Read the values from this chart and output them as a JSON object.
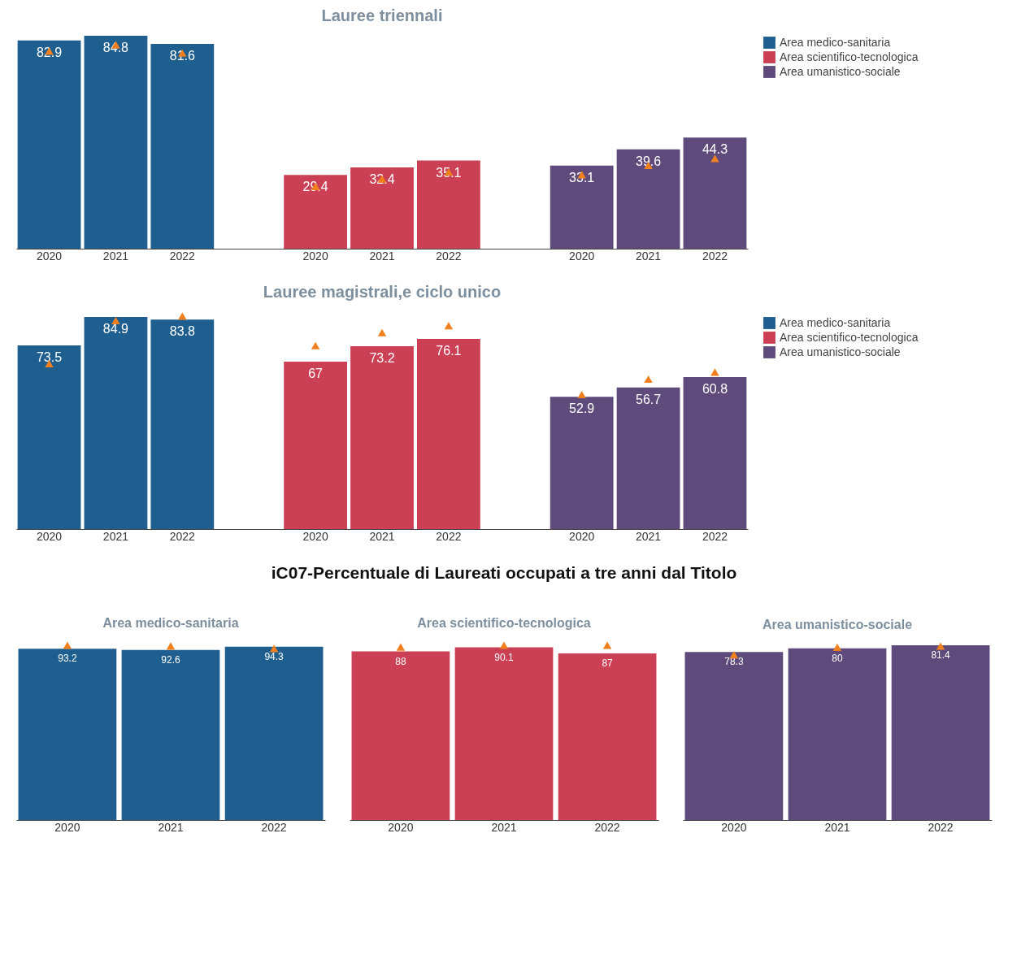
{
  "chart_data": [
    {
      "type": "bar",
      "title": "Lauree triennali",
      "categories": [
        "2020",
        "2021",
        "2022",
        "2020",
        "2021",
        "2022",
        "2020",
        "2021",
        "2022"
      ],
      "tick_labels": "x",
      "grid": false,
      "legend": "top right",
      "series": [
        {
          "name": "Area medico-sanitaria",
          "color": "#1f5f8f",
          "values": [
            82.9,
            84.8,
            81.6,
            null,
            null,
            null,
            null,
            null,
            null
          ],
          "value_labels": [
            "82.9",
            "84.8",
            "81.6",
            null,
            null,
            null,
            null,
            null,
            null
          ]
        },
        {
          "name": "Area scientifico-tecnologica",
          "color": "#cc4055",
          "values": [
            null,
            null,
            null,
            29.4,
            32.4,
            35.1,
            null,
            null,
            null
          ],
          "value_labels": [
            null,
            null,
            null,
            "29.4",
            "32.4",
            "35.1",
            null,
            null,
            null
          ]
        },
        {
          "name": "Area umanistico-sociale",
          "color": "#5e4b7c",
          "values": [
            null,
            null,
            null,
            null,
            null,
            null,
            33.1,
            39.6,
            44.3
          ],
          "value_labels": [
            null,
            null,
            null,
            null,
            null,
            null,
            "33.1",
            "39.6",
            "44.3"
          ]
        },
        {
          "type": "scatter",
          "marker": "triangle",
          "color": "#f0801e",
          "values": [
            78.7,
            81.2,
            77.9,
            24.8,
            27.8,
            30.5,
            29.5,
            33.2,
            35.9
          ]
        }
      ]
    },
    {
      "type": "bar",
      "title": "Lauree magistrali,e ciclo unico",
      "categories": [
        "2020",
        "2021",
        "2022",
        "2020",
        "2021",
        "2022",
        "2020",
        "2021",
        "2022"
      ],
      "tick_labels": "x",
      "grid": false,
      "legend": "top right",
      "series": [
        {
          "name": "Area medico-sanitaria",
          "color": "#1f5f8f",
          "values": [
            73.5,
            84.9,
            83.8,
            null,
            null,
            null,
            null,
            null,
            null
          ],
          "value_labels": [
            "73.5",
            "84.9",
            "83.8",
            null,
            null,
            null,
            null,
            null,
            null
          ]
        },
        {
          "name": "Area scientifico-tecnologica",
          "color": "#cc4055",
          "values": [
            null,
            null,
            null,
            67,
            73.2,
            76.1,
            null,
            null,
            null
          ],
          "value_labels": [
            null,
            null,
            null,
            "67",
            "73.2",
            "76.1",
            null,
            null,
            null
          ]
        },
        {
          "name": "Area umanistico-sociale",
          "color": "#5e4b7c",
          "values": [
            null,
            null,
            null,
            null,
            null,
            null,
            52.9,
            56.7,
            60.8
          ],
          "value_labels": [
            null,
            null,
            null,
            null,
            null,
            null,
            "52.9",
            "56.7",
            "60.8"
          ]
        },
        {
          "type": "scatter",
          "marker": "triangle",
          "color": "#f0801e",
          "values": [
            66.2,
            83.4,
            85.2,
            73.4,
            78.6,
            81.4,
            53.8,
            60.0,
            62.8
          ]
        }
      ]
    },
    {
      "type": "other",
      "title": "iC07-Percentuale di Laureati occupati a tre anni dal Titolo"
    },
    {
      "type": "bar",
      "title": "Area medico-sanitaria",
      "categories": [
        "2020",
        "2021",
        "2022"
      ],
      "tick_labels": "x",
      "grid": false,
      "series": [
        {
          "color": "#1f5f8f",
          "values": [
            93.2,
            92.6,
            94.3
          ],
          "value_labels": [
            "93.2",
            "92.6",
            "94.3"
          ]
        },
        {
          "type": "scatter",
          "marker": "triangle",
          "color": "#f0801e",
          "values": [
            95.1,
            94.7,
            93.4
          ]
        }
      ]
    },
    {
      "type": "bar",
      "title": "Area scientifico-tecnologica",
      "categories": [
        "2020",
        "2021",
        "2022"
      ],
      "tick_labels": "x",
      "grid": false,
      "series": [
        {
          "color": "#cc4055",
          "values": [
            88,
            90.1,
            87
          ],
          "value_labels": [
            "88",
            "90.1",
            "87"
          ]
        },
        {
          "type": "scatter",
          "marker": "triangle",
          "color": "#f0801e",
          "values": [
            90.3,
            91.2,
            91.2
          ]
        }
      ]
    },
    {
      "type": "bar",
      "title": "Area umanistico-sociale",
      "categories": [
        "2020",
        "2021",
        "2022"
      ],
      "tick_labels": "x",
      "grid": false,
      "series": [
        {
          "color": "#5e4b7c",
          "values": [
            78.3,
            80,
            81.4
          ],
          "value_labels": [
            "78.3",
            "80",
            "81.4"
          ]
        },
        {
          "type": "scatter",
          "marker": "triangle",
          "color": "#f0801e",
          "values": [
            77.0,
            80.5,
            81.0
          ]
        }
      ]
    }
  ]
}
